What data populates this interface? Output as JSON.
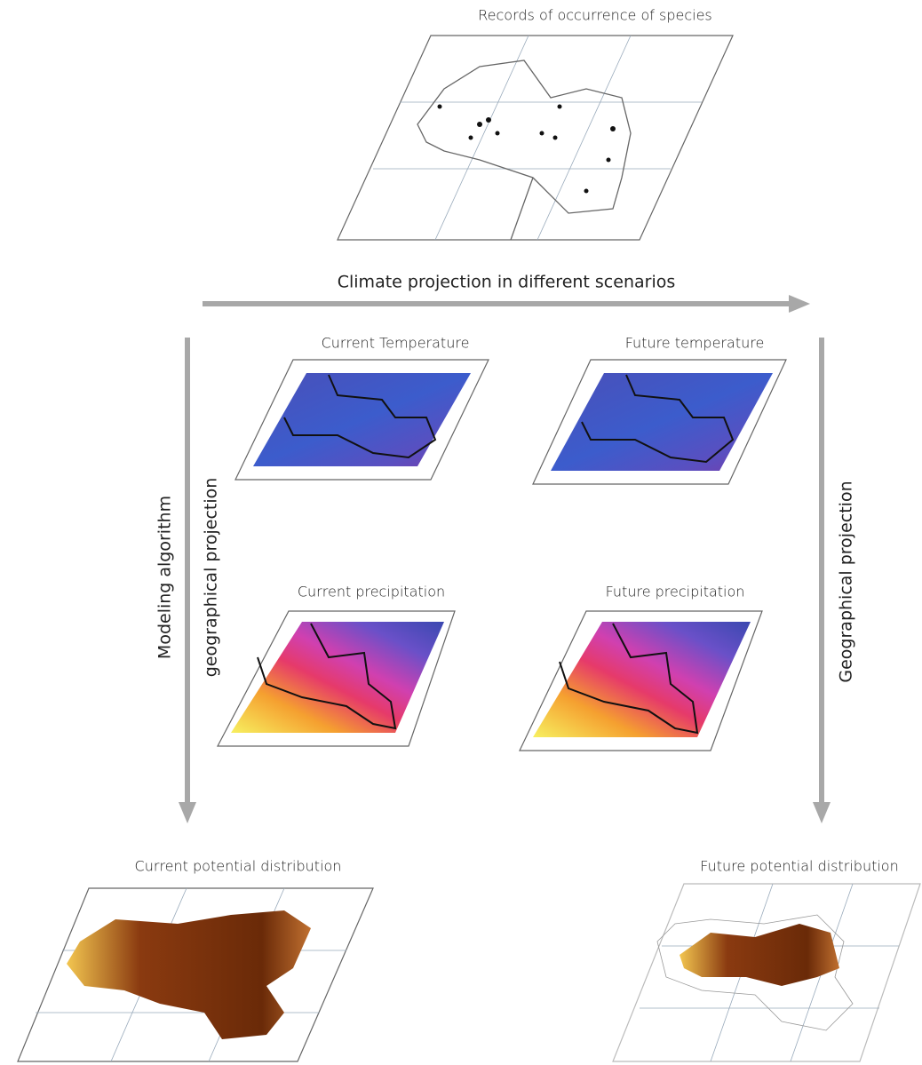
{
  "top_map": {
    "label": "Records of occurrence of species"
  },
  "arrows": {
    "climate": "Climate projection in different scenarios",
    "modeling": "Modeling algorithm",
    "geo_left": "geographical projection",
    "geo_right": "Geographical projection"
  },
  "panels": [
    {
      "label": "Current Temperature"
    },
    {
      "label": "Future temperature"
    },
    {
      "label": "Current precipitation"
    },
    {
      "label": "Future precipitation"
    }
  ],
  "outputs": [
    {
      "label": "Current potential distribution"
    },
    {
      "label": "Future potential distribution"
    }
  ]
}
